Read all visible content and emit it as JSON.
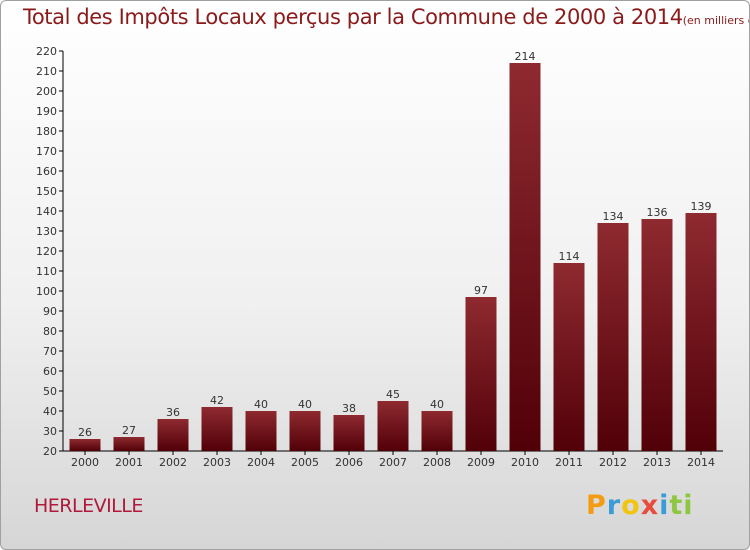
{
  "title": "Total des Impôts Locaux perçus par la Commune de 2000 à 2014",
  "unit": "(en milliers d'€)",
  "commune": "HERLEVILLE",
  "brand": {
    "letters": [
      "P",
      "r",
      "o",
      "x",
      "i",
      "t",
      "i"
    ],
    "colors": [
      "#f39c12",
      "#3a9bd6",
      "#f1c40f",
      "#e74c3c",
      "#3a9bd6",
      "#8dc63f",
      "#8dc63f"
    ]
  },
  "chart_data": {
    "type": "bar",
    "title": "Total des Impôts Locaux perçus par la Commune de 2000 à 2014",
    "categories": [
      "2000",
      "2001",
      "2002",
      "2003",
      "2004",
      "2005",
      "2006",
      "2007",
      "2008",
      "2009",
      "2010",
      "2011",
      "2012",
      "2013",
      "2014"
    ],
    "values": [
      26,
      27,
      36,
      42,
      40,
      40,
      38,
      45,
      40,
      97,
      214,
      114,
      134,
      136,
      139
    ],
    "ylim": [
      20,
      220
    ],
    "yticks": [
      20,
      30,
      40,
      50,
      60,
      70,
      80,
      90,
      100,
      110,
      120,
      130,
      140,
      150,
      160,
      170,
      180,
      190,
      200,
      210,
      220
    ],
    "xlabel": "",
    "ylabel": "",
    "grid": false,
    "bar_color": "#7a1218"
  }
}
